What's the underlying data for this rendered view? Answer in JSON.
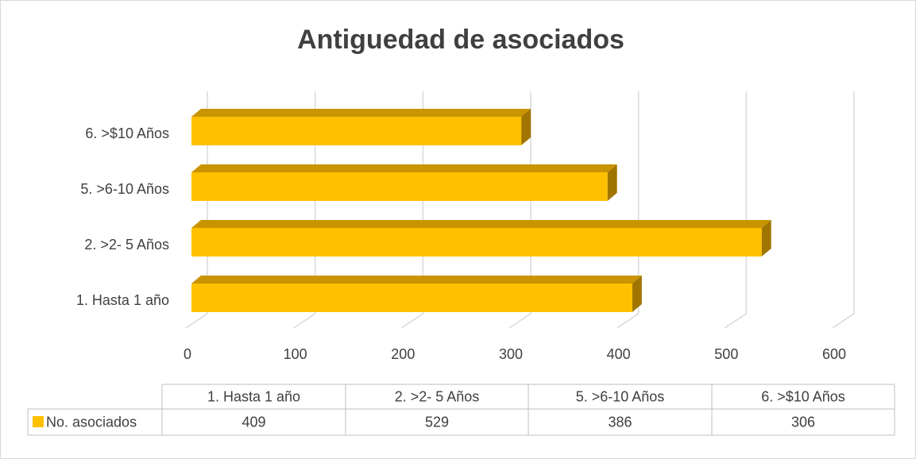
{
  "chart_data": {
    "type": "bar3d_horizontal",
    "title": "Antiguedad de asociados",
    "categories": [
      "1.  Hasta 1 año",
      "2. >2- 5 Años",
      "5. >6-10 Años",
      "6. >$10 Años"
    ],
    "series": [
      {
        "name": "No. asociados",
        "color": "#FFC000",
        "values": [
          409,
          529,
          386,
          306
        ]
      }
    ],
    "xlim": [
      0,
      600
    ],
    "xticks": [
      0,
      100,
      200,
      300,
      400,
      500,
      600
    ],
    "grid": true,
    "data_table": true
  }
}
